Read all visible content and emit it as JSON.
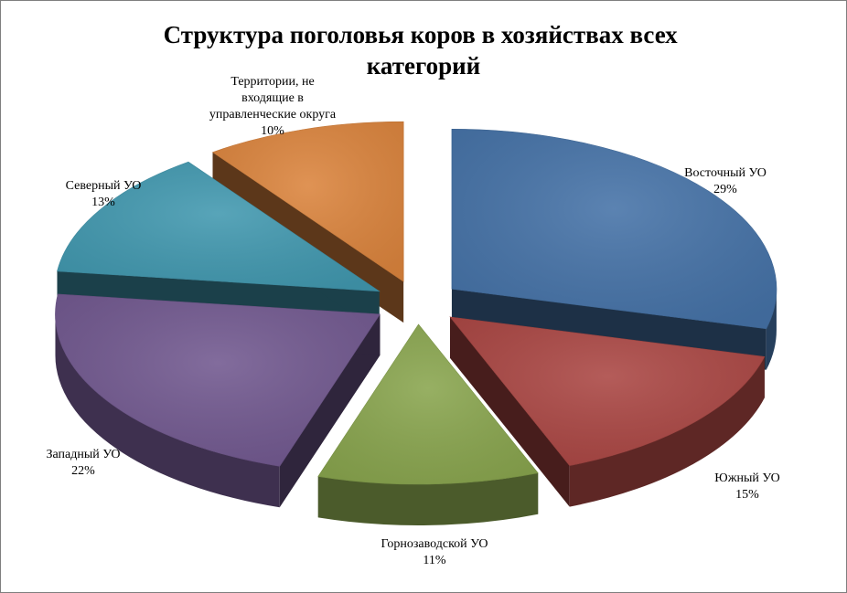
{
  "chart_data": {
    "type": "pie",
    "style": "3d-exploded",
    "title": "Структура поголовья коров в хозяйствах всех категорий",
    "title_lines": [
      "Структура поголовья коров в хозяйствах всех",
      "категорий"
    ],
    "legend": "none",
    "slices": [
      {
        "label": "Восточный УО",
        "label_lines": [
          "Восточный УО"
        ],
        "value": 29,
        "value_label": "29%",
        "color": "#4572A7"
      },
      {
        "label": "Южный УО",
        "label_lines": [
          "Южный УО"
        ],
        "value": 15,
        "value_label": "15%",
        "color": "#AA4643"
      },
      {
        "label": "Горнозаводской УО",
        "label_lines": [
          "Горнозаводской УО"
        ],
        "value": 11,
        "value_label": "11%",
        "color": "#89A54E"
      },
      {
        "label": "Западный УО",
        "label_lines": [
          "Западный  УО"
        ],
        "value": 22,
        "value_label": "22%",
        "color": "#71588F"
      },
      {
        "label": "Северный УО",
        "label_lines": [
          "Северный УО"
        ],
        "value": 13,
        "value_label": "13%",
        "color": "#4198AF"
      },
      {
        "label": "Территории, не входящие в управленческие округа",
        "label_lines": [
          "Территории,  не",
          "входящие в",
          "управленческие округа"
        ],
        "value": 10,
        "value_label": "10%",
        "color": "#DB843D"
      }
    ]
  }
}
